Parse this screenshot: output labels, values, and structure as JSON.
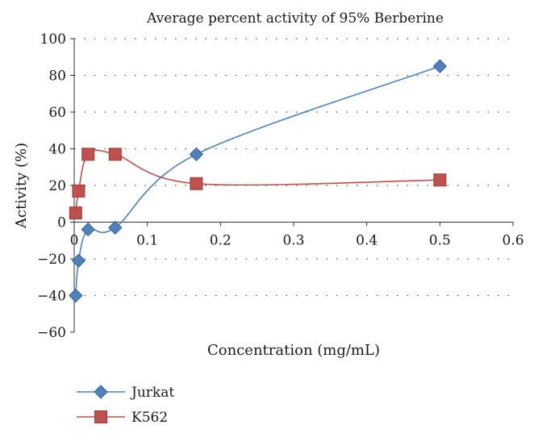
{
  "chart_data": {
    "type": "line",
    "title": "Average percent activity of 95% Berberine",
    "xlabel": "Concentration (mg/mL)",
    "ylabel": "Activity (%)",
    "xlim": [
      0,
      0.6
    ],
    "ylim": [
      -60,
      100
    ],
    "xticks": [
      0,
      0.1,
      0.2,
      0.3,
      0.4,
      0.5,
      0.6
    ],
    "xtick_labels": [
      "0",
      "0.1",
      "0.2",
      "0.3",
      "0.4",
      "0.5",
      "0.6"
    ],
    "yticks": [
      -60,
      -40,
      -20,
      0,
      20,
      40,
      60,
      80,
      100
    ],
    "ytick_labels": [
      "−60",
      "−40",
      "−20",
      "0",
      "20",
      "40",
      "60",
      "80",
      "100"
    ],
    "grid": "dotted horizontal",
    "legend_position": "bottom-left",
    "series": [
      {
        "name": "Jurkat",
        "marker": "diamond",
        "color": "#4f81bd",
        "x": [
          0.002,
          0.006,
          0.019,
          0.056,
          0.167,
          0.5
        ],
        "y": [
          -40,
          -21,
          -4,
          -3,
          37,
          85
        ]
      },
      {
        "name": "K562",
        "marker": "square",
        "color": "#c0504d",
        "x": [
          0.002,
          0.006,
          0.019,
          0.056,
          0.167,
          0.5
        ],
        "y": [
          5,
          17,
          37,
          37,
          21,
          23
        ]
      }
    ]
  }
}
